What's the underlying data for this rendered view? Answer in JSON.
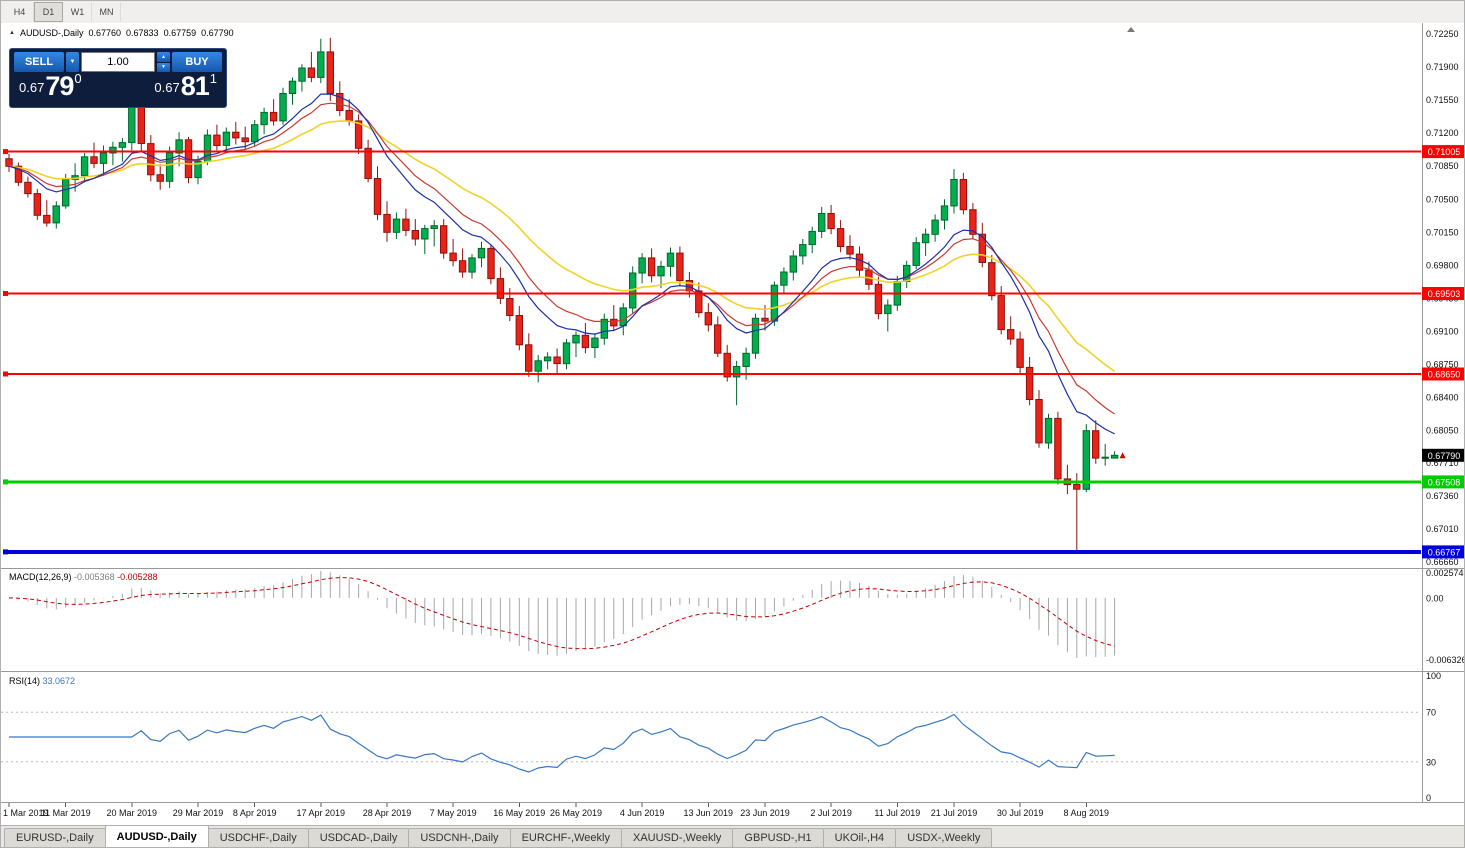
{
  "toolbar": {
    "periods": [
      "H4",
      "D1",
      "W1",
      "MN"
    ],
    "active": "D1"
  },
  "chart": {
    "symbol": "AUDUSD-,Daily",
    "ohlc": {
      "open": "0.67760",
      "high": "0.67833",
      "low": "0.67759",
      "close": "0.67790"
    }
  },
  "trade_panel": {
    "sell_label": "SELL",
    "buy_label": "BUY",
    "volume": "1.00",
    "sell_price": {
      "prefix": "0.67",
      "big": "79",
      "sup": "0"
    },
    "buy_price": {
      "prefix": "0.67",
      "big": "81",
      "sup": "1"
    }
  },
  "levels": [
    {
      "price": 0.71005,
      "label": "0.71005",
      "color": "#ff0000",
      "width": 2
    },
    {
      "price": 0.69503,
      "label": "0.69503",
      "color": "#ff0000",
      "width": 2
    },
    {
      "price": 0.6865,
      "label": "0.68650",
      "color": "#ff0000",
      "width": 2
    },
    {
      "price": 0.67508,
      "label": "0.67508",
      "color": "#00cc00",
      "width": 3
    },
    {
      "price": 0.66767,
      "label": "0.66767",
      "color": "#0000dd",
      "width": 4
    }
  ],
  "current_price": {
    "value": 0.6779,
    "label": "0.67790",
    "badge_color": "#000000"
  },
  "price_axis": [
    "0.72250",
    "0.71900",
    "0.71550",
    "0.71200",
    "0.70850",
    "0.70500",
    "0.70150",
    "0.69800",
    "0.69450",
    "0.69100",
    "0.68750",
    "0.68400",
    "0.68050",
    "0.67710",
    "0.67360",
    "0.67010",
    "0.66660"
  ],
  "date_axis": [
    {
      "label": "1 Mar 2019",
      "i": 0
    },
    {
      "label": "11 Mar 2019",
      "i": 6
    },
    {
      "label": "20 Mar 2019",
      "i": 13
    },
    {
      "label": "29 Mar 2019",
      "i": 20
    },
    {
      "label": "8 Apr 2019",
      "i": 26
    },
    {
      "label": "17 Apr 2019",
      "i": 33
    },
    {
      "label": "28 Apr 2019",
      "i": 40
    },
    {
      "label": "7 May 2019",
      "i": 47
    },
    {
      "label": "16 May 2019",
      "i": 54
    },
    {
      "label": "26 May 2019",
      "i": 60
    },
    {
      "label": "4 Jun 2019",
      "i": 67
    },
    {
      "label": "13 Jun 2019",
      "i": 74
    },
    {
      "label": "23 Jun 2019",
      "i": 80
    },
    {
      "label": "2 Jul 2019",
      "i": 87
    },
    {
      "label": "11 Jul 2019",
      "i": 94
    },
    {
      "label": "21 Jul 2019",
      "i": 100
    },
    {
      "label": "30 Jul 2019",
      "i": 107
    },
    {
      "label": "8 Aug 2019",
      "i": 114
    }
  ],
  "macd": {
    "name": "MACD(12,26,9)",
    "main_value": "-0.005368",
    "signal_value": "-0.005288",
    "axis_labels": [
      "0.002574",
      "0.00",
      "-0.006326"
    ],
    "max": 0.002574,
    "min": -0.006326,
    "fast": 12,
    "slow": 26,
    "signal": 9
  },
  "rsi": {
    "name": "RSI(14)",
    "value": "33.0672",
    "axis_labels": [
      "100",
      "70",
      "30",
      "0"
    ],
    "levels": [
      70,
      30
    ],
    "period": 14
  },
  "tabs": [
    {
      "label": "EURUSD-,Daily",
      "active": false
    },
    {
      "label": "AUDUSD-,Daily",
      "active": true
    },
    {
      "label": "USDCHF-,Daily",
      "active": false
    },
    {
      "label": "USDCAD-,Daily",
      "active": false
    },
    {
      "label": "USDCNH-,Daily",
      "active": false
    },
    {
      "label": "EURCHF-,Weekly",
      "active": false
    },
    {
      "label": "XAUUSD-,Weekly",
      "active": false
    },
    {
      "label": "GBPUSD-,H1",
      "active": false
    },
    {
      "label": "UKOil-,H4",
      "active": false
    },
    {
      "label": "USDX-,Weekly",
      "active": false
    }
  ],
  "colors": {
    "up": "#00ae4d",
    "up_border": "#00662b",
    "down": "#e8231a",
    "down_border": "#8e120c",
    "ma_fast": "#1c2fa8",
    "ma_mid": "#c93a30",
    "ma_slow": "#f2d227",
    "macd_hist": "#a6a6a6",
    "macd_signal": "#c00000",
    "rsi_line": "#3a77c3"
  },
  "candles": [
    [
      0.7093,
      0.7098,
      0.7079,
      0.7085
    ],
    [
      0.7085,
      0.7089,
      0.7064,
      0.7068
    ],
    [
      0.7068,
      0.7074,
      0.7052,
      0.7056
    ],
    [
      0.7056,
      0.7061,
      0.7028,
      0.7033
    ],
    [
      0.7033,
      0.7049,
      0.7021,
      0.7025
    ],
    [
      0.7025,
      0.7048,
      0.7019,
      0.7043
    ],
    [
      0.7043,
      0.7077,
      0.704,
      0.7071
    ],
    [
      0.7071,
      0.7088,
      0.7058,
      0.7075
    ],
    [
      0.7075,
      0.7099,
      0.7069,
      0.7095
    ],
    [
      0.7095,
      0.711,
      0.7083,
      0.7088
    ],
    [
      0.7088,
      0.7107,
      0.7075,
      0.7099
    ],
    [
      0.7099,
      0.7111,
      0.7086,
      0.7105
    ],
    [
      0.7105,
      0.7115,
      0.709,
      0.711
    ],
    [
      0.711,
      0.716,
      0.7102,
      0.715
    ],
    [
      0.715,
      0.7158,
      0.71,
      0.7109
    ],
    [
      0.7109,
      0.7118,
      0.7069,
      0.7076
    ],
    [
      0.7076,
      0.7087,
      0.706,
      0.7069
    ],
    [
      0.7069,
      0.7106,
      0.7062,
      0.7099
    ],
    [
      0.7099,
      0.7121,
      0.7085,
      0.7113
    ],
    [
      0.7113,
      0.7116,
      0.7067,
      0.7073
    ],
    [
      0.7073,
      0.7096,
      0.7066,
      0.709
    ],
    [
      0.709,
      0.7124,
      0.7086,
      0.7118
    ],
    [
      0.7118,
      0.7129,
      0.7102,
      0.7107
    ],
    [
      0.7107,
      0.7126,
      0.71,
      0.7121
    ],
    [
      0.7121,
      0.7132,
      0.7108,
      0.7115
    ],
    [
      0.7115,
      0.7127,
      0.7103,
      0.7111
    ],
    [
      0.7111,
      0.7134,
      0.7106,
      0.7129
    ],
    [
      0.7129,
      0.7147,
      0.7119,
      0.7142
    ],
    [
      0.7142,
      0.7156,
      0.7128,
      0.7133
    ],
    [
      0.7133,
      0.7168,
      0.7129,
      0.7162
    ],
    [
      0.7162,
      0.7179,
      0.715,
      0.7175
    ],
    [
      0.7175,
      0.7193,
      0.7164,
      0.7189
    ],
    [
      0.7189,
      0.7206,
      0.7174,
      0.7179
    ],
    [
      0.7179,
      0.722,
      0.7173,
      0.7206
    ],
    [
      0.7206,
      0.7221,
      0.7154,
      0.7162
    ],
    [
      0.7162,
      0.7175,
      0.7138,
      0.7144
    ],
    [
      0.7144,
      0.7156,
      0.7128,
      0.7133
    ],
    [
      0.7133,
      0.714,
      0.7098,
      0.7104
    ],
    [
      0.7104,
      0.7113,
      0.7068,
      0.7072
    ],
    [
      0.7072,
      0.7085,
      0.7028,
      0.7034
    ],
    [
      0.7034,
      0.7048,
      0.7005,
      0.7015
    ],
    [
      0.7015,
      0.7036,
      0.7008,
      0.7029
    ],
    [
      0.7029,
      0.704,
      0.7011,
      0.7017
    ],
    [
      0.7017,
      0.7029,
      0.7001,
      0.7008
    ],
    [
      0.7008,
      0.7023,
      0.6992,
      0.7019
    ],
    [
      0.7019,
      0.7028,
      0.7,
      0.7022
    ],
    [
      0.7022,
      0.7029,
      0.6987,
      0.6993
    ],
    [
      0.6993,
      0.7008,
      0.6979,
      0.6985
    ],
    [
      0.6985,
      0.6998,
      0.6967,
      0.6973
    ],
    [
      0.6973,
      0.6992,
      0.6966,
      0.6988
    ],
    [
      0.6988,
      0.7005,
      0.6978,
      0.6998
    ],
    [
      0.6998,
      0.7002,
      0.696,
      0.6966
    ],
    [
      0.6966,
      0.6978,
      0.6939,
      0.6945
    ],
    [
      0.6945,
      0.6956,
      0.6921,
      0.6927
    ],
    [
      0.6927,
      0.6937,
      0.689,
      0.6896
    ],
    [
      0.6896,
      0.6908,
      0.6862,
      0.6868
    ],
    [
      0.6868,
      0.6885,
      0.6856,
      0.6879
    ],
    [
      0.6879,
      0.6888,
      0.687,
      0.6883
    ],
    [
      0.6883,
      0.6892,
      0.6865,
      0.6876
    ],
    [
      0.6876,
      0.6902,
      0.687,
      0.6898
    ],
    [
      0.6898,
      0.691,
      0.6883,
      0.6906
    ],
    [
      0.6906,
      0.6919,
      0.6887,
      0.6893
    ],
    [
      0.6893,
      0.6908,
      0.6882,
      0.6903
    ],
    [
      0.6903,
      0.6929,
      0.6896,
      0.6923
    ],
    [
      0.6923,
      0.6938,
      0.6911,
      0.6916
    ],
    [
      0.6916,
      0.694,
      0.6906,
      0.6935
    ],
    [
      0.6935,
      0.6979,
      0.6929,
      0.6972
    ],
    [
      0.6972,
      0.6993,
      0.6961,
      0.6988
    ],
    [
      0.6988,
      0.6998,
      0.6962,
      0.6969
    ],
    [
      0.6969,
      0.6985,
      0.6956,
      0.6979
    ],
    [
      0.6979,
      0.6999,
      0.6968,
      0.6993
    ],
    [
      0.6993,
      0.7,
      0.6958,
      0.6964
    ],
    [
      0.6964,
      0.6973,
      0.6946,
      0.6953
    ],
    [
      0.6953,
      0.6962,
      0.6925,
      0.693
    ],
    [
      0.693,
      0.694,
      0.691,
      0.6917
    ],
    [
      0.6917,
      0.6926,
      0.6883,
      0.6887
    ],
    [
      0.6887,
      0.6896,
      0.6857,
      0.6862
    ],
    [
      0.6862,
      0.6879,
      0.6832,
      0.6873
    ],
    [
      0.6873,
      0.6893,
      0.6859,
      0.6887
    ],
    [
      0.6887,
      0.6929,
      0.6881,
      0.6924
    ],
    [
      0.6924,
      0.6938,
      0.6911,
      0.6921
    ],
    [
      0.6921,
      0.6963,
      0.6916,
      0.6959
    ],
    [
      0.6959,
      0.6978,
      0.695,
      0.6973
    ],
    [
      0.6973,
      0.6996,
      0.6964,
      0.699
    ],
    [
      0.699,
      0.7008,
      0.6981,
      0.7002
    ],
    [
      0.7002,
      0.7021,
      0.6993,
      0.7016
    ],
    [
      0.7016,
      0.7042,
      0.7009,
      0.7035
    ],
    [
      0.7035,
      0.7044,
      0.7013,
      0.7019
    ],
    [
      0.7019,
      0.7028,
      0.6994,
      0.7
    ],
    [
      0.7,
      0.7012,
      0.6986,
      0.6992
    ],
    [
      0.6992,
      0.7,
      0.6968,
      0.6975
    ],
    [
      0.6975,
      0.6984,
      0.6954,
      0.696
    ],
    [
      0.696,
      0.6968,
      0.6923,
      0.6929
    ],
    [
      0.6929,
      0.6944,
      0.691,
      0.6938
    ],
    [
      0.6938,
      0.6969,
      0.6932,
      0.6963
    ],
    [
      0.6963,
      0.6985,
      0.6956,
      0.698
    ],
    [
      0.698,
      0.701,
      0.6976,
      0.7004
    ],
    [
      0.7004,
      0.7019,
      0.699,
      0.7013
    ],
    [
      0.7013,
      0.7034,
      0.7005,
      0.7028
    ],
    [
      0.7028,
      0.705,
      0.7018,
      0.7043
    ],
    [
      0.7043,
      0.7082,
      0.7035,
      0.7071
    ],
    [
      0.7071,
      0.7078,
      0.7034,
      0.7039
    ],
    [
      0.7039,
      0.7046,
      0.7008,
      0.7013
    ],
    [
      0.7013,
      0.7025,
      0.6978,
      0.6983
    ],
    [
      0.6983,
      0.6991,
      0.6943,
      0.6948
    ],
    [
      0.6948,
      0.6958,
      0.6907,
      0.6912
    ],
    [
      0.6912,
      0.6926,
      0.6896,
      0.6902
    ],
    [
      0.6902,
      0.691,
      0.6865,
      0.6872
    ],
    [
      0.6872,
      0.6883,
      0.6832,
      0.6838
    ],
    [
      0.6838,
      0.6848,
      0.6787,
      0.6792
    ],
    [
      0.6792,
      0.6823,
      0.6786,
      0.6818
    ],
    [
      0.6818,
      0.6825,
      0.6748,
      0.6754
    ],
    [
      0.6754,
      0.6769,
      0.6738,
      0.6748
    ],
    [
      0.6748,
      0.676,
      0.6677,
      0.6743
    ],
    [
      0.6743,
      0.6812,
      0.674,
      0.6805
    ],
    [
      0.6805,
      0.6816,
      0.677,
      0.6776
    ],
    [
      0.6776,
      0.6791,
      0.6768,
      0.6777
    ],
    [
      0.6776,
      0.67833,
      0.67759,
      0.6779
    ]
  ]
}
